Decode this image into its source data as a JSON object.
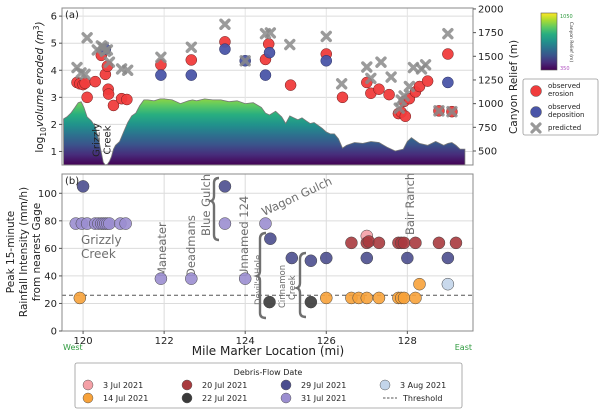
{
  "chart_data": [
    {
      "panel": "a",
      "type": "scatter",
      "panel_label": "(a)",
      "ylabel": "log10 volume eroded (m^3)",
      "ylabel_parts": {
        "prefix": "log",
        "sub": "10",
        "mid": "volume eroded ",
        "unit_open": "(m",
        "sup": "3",
        "unit_close": ")"
      },
      "ylim": [
        0.5,
        6.3
      ],
      "yticks": [
        1,
        2,
        3,
        4,
        5,
        6
      ],
      "y2label": "Canyon Relief (m)",
      "y2lim": [
        352,
        2010
      ],
      "y2ticks": [
        500,
        750,
        1000,
        1250,
        1500,
        1750,
        2000
      ],
      "xlim": [
        119.48,
        129.62
      ],
      "grid": true,
      "annotation": {
        "text_line1": "Grizzly",
        "text_line2": "Creek",
        "x": 120.55
      },
      "colorbar": {
        "label": "Canyon Relief (m)",
        "min_label": "350",
        "max_label": "1050",
        "min": 350,
        "max": 1050,
        "colormap": "viridis"
      },
      "legend": {
        "position": "right",
        "entries": [
          {
            "label_line1": "observed",
            "label_line2": "erosion",
            "kind": "erosion"
          },
          {
            "label_line1": "observed",
            "label_line2": "deposition",
            "kind": "deposition"
          },
          {
            "label_line1": "predicted",
            "label_line2": "",
            "kind": "predicted"
          }
        ]
      },
      "relief_profile": {
        "x": [
          119.52,
          119.6,
          119.7,
          119.8,
          119.88,
          119.95,
          120.02,
          120.1,
          120.2,
          120.3,
          120.4,
          120.5,
          120.55,
          120.6,
          120.65,
          120.7,
          120.75,
          120.8,
          120.9,
          121.0,
          121.1,
          121.2,
          121.3,
          121.4,
          121.5,
          121.6,
          121.75,
          121.9,
          122.0,
          122.2,
          122.4,
          122.6,
          122.7,
          122.8,
          123.0,
          123.2,
          123.4,
          123.5,
          123.6,
          123.8,
          124.0,
          124.2,
          124.4,
          124.5,
          124.6,
          124.75,
          124.9,
          125.0,
          125.1,
          125.2,
          125.3,
          125.4,
          125.5,
          125.6,
          125.7,
          125.8,
          125.9,
          126.0,
          126.1,
          126.2,
          126.3,
          126.4,
          126.5,
          126.7,
          126.9,
          127.1,
          127.3,
          127.5,
          127.7,
          127.9,
          128.0,
          128.1,
          128.3,
          128.5,
          128.7,
          128.9,
          129.0,
          129.1,
          129.2,
          129.3,
          129.42
        ],
        "relief": [
          840,
          860,
          900,
          960,
          1010,
          1020,
          960,
          860,
          820,
          760,
          590,
          380,
          352,
          360,
          390,
          440,
          520,
          560,
          600,
          700,
          800,
          870,
          900,
          980,
          1040,
          1040,
          1030,
          1050,
          1050,
          1040,
          1000,
          1030,
          1040,
          1030,
          1050,
          1040,
          1040,
          1030,
          1020,
          1030,
          1000,
          1010,
          960,
          900,
          880,
          920,
          860,
          790,
          870,
          850,
          830,
          850,
          820,
          790,
          800,
          770,
          740,
          700,
          680,
          680,
          630,
          530,
          560,
          590,
          580,
          600,
          590,
          540,
          500,
          520,
          600,
          640,
          580,
          560,
          600,
          560,
          580,
          590,
          560,
          520,
          520
        ]
      },
      "observed_erosion": [
        {
          "x": 119.85,
          "y": 3.55
        },
        {
          "x": 119.92,
          "y": 3.5
        },
        {
          "x": 120.0,
          "y": 3.47
        },
        {
          "x": 120.05,
          "y": 3.52
        },
        {
          "x": 120.1,
          "y": 3.0
        },
        {
          "x": 120.3,
          "y": 3.58
        },
        {
          "x": 120.45,
          "y": 4.55
        },
        {
          "x": 120.55,
          "y": 3.85
        },
        {
          "x": 120.6,
          "y": 4.15
        },
        {
          "x": 120.62,
          "y": 3.3
        },
        {
          "x": 120.63,
          "y": 3.12
        },
        {
          "x": 120.75,
          "y": 2.7
        },
        {
          "x": 120.95,
          "y": 2.95
        },
        {
          "x": 121.08,
          "y": 2.92
        },
        {
          "x": 121.92,
          "y": 4.2
        },
        {
          "x": 122.67,
          "y": 4.38
        },
        {
          "x": 123.5,
          "y": 5.05
        },
        {
          "x": 124.5,
          "y": 4.4
        },
        {
          "x": 124.58,
          "y": 4.97
        },
        {
          "x": 125.12,
          "y": 3.45
        },
        {
          "x": 126.0,
          "y": 4.6
        },
        {
          "x": 126.4,
          "y": 3.0
        },
        {
          "x": 127.0,
          "y": 3.55
        },
        {
          "x": 127.1,
          "y": 3.15
        },
        {
          "x": 127.3,
          "y": 3.3
        },
        {
          "x": 127.55,
          "y": 3.1
        },
        {
          "x": 127.78,
          "y": 2.4
        },
        {
          "x": 127.85,
          "y": 2.45
        },
        {
          "x": 127.95,
          "y": 2.3
        },
        {
          "x": 127.92,
          "y": 2.85
        },
        {
          "x": 128.05,
          "y": 2.95
        },
        {
          "x": 128.2,
          "y": 3.2
        },
        {
          "x": 128.3,
          "y": 3.4
        },
        {
          "x": 128.5,
          "y": 3.6
        },
        {
          "x": 128.78,
          "y": 2.5
        },
        {
          "x": 129.1,
          "y": 2.47
        },
        {
          "x": 129.0,
          "y": 4.6
        }
      ],
      "observed_deposition": [
        {
          "x": 120.55,
          "y": 4.78
        },
        {
          "x": 121.92,
          "y": 3.82
        },
        {
          "x": 122.67,
          "y": 3.82
        },
        {
          "x": 123.5,
          "y": 4.78
        },
        {
          "x": 124.0,
          "y": 4.35
        },
        {
          "x": 124.5,
          "y": 3.82
        },
        {
          "x": 124.6,
          "y": 4.65
        },
        {
          "x": 126.0,
          "y": 4.35
        },
        {
          "x": 129.0,
          "y": 3.55
        }
      ],
      "predicted": [
        {
          "x": 119.85,
          "y": 4.1
        },
        {
          "x": 119.95,
          "y": 3.9
        },
        {
          "x": 120.05,
          "y": 3.85
        },
        {
          "x": 120.1,
          "y": 5.2
        },
        {
          "x": 120.35,
          "y": 4.75
        },
        {
          "x": 120.45,
          "y": 4.9
        },
        {
          "x": 120.5,
          "y": 4.85
        },
        {
          "x": 120.55,
          "y": 4.7
        },
        {
          "x": 120.6,
          "y": 4.75
        },
        {
          "x": 120.65,
          "y": 4.3
        },
        {
          "x": 120.95,
          "y": 4.05
        },
        {
          "x": 121.1,
          "y": 4.0
        },
        {
          "x": 121.92,
          "y": 4.48
        },
        {
          "x": 122.67,
          "y": 4.85
        },
        {
          "x": 123.5,
          "y": 5.7
        },
        {
          "x": 124.0,
          "y": 4.35
        },
        {
          "x": 124.5,
          "y": 5.35
        },
        {
          "x": 124.62,
          "y": 5.38
        },
        {
          "x": 125.1,
          "y": 4.95
        },
        {
          "x": 126.0,
          "y": 5.25
        },
        {
          "x": 126.38,
          "y": 3.5
        },
        {
          "x": 127.0,
          "y": 4.12
        },
        {
          "x": 127.1,
          "y": 3.7
        },
        {
          "x": 127.35,
          "y": 4.3
        },
        {
          "x": 127.6,
          "y": 3.75
        },
        {
          "x": 127.8,
          "y": 2.6
        },
        {
          "x": 127.85,
          "y": 2.9
        },
        {
          "x": 127.92,
          "y": 3.05
        },
        {
          "x": 128.05,
          "y": 3.4
        },
        {
          "x": 128.15,
          "y": 4.1
        },
        {
          "x": 128.35,
          "y": 4.05
        },
        {
          "x": 128.45,
          "y": 4.2
        },
        {
          "x": 128.78,
          "y": 2.5
        },
        {
          "x": 129.1,
          "y": 2.47
        },
        {
          "x": 129.0,
          "y": 5.35
        }
      ]
    },
    {
      "panel": "b",
      "type": "scatter",
      "panel_label": "(b)",
      "ylabel_lines": [
        "Peak 15-minute",
        "Rainfall Intensity (mm/h)",
        "from nearest Gage"
      ],
      "ylim": [
        0,
        114
      ],
      "yticks": [
        0,
        20,
        40,
        60,
        80,
        100
      ],
      "xlabel": "Mile Marker Location (mi)",
      "xlim": [
        119.48,
        129.62
      ],
      "xticks": [
        120,
        122,
        124,
        126,
        128
      ],
      "direction_labels": {
        "west": "West",
        "east": "East",
        "color": "#2e9a3e"
      },
      "threshold": 26,
      "grid": true,
      "series": [
        {
          "name": "3 Jul 2021",
          "color": "#f4a0a6",
          "points": [
            {
              "x": 127.0,
              "y": 69
            }
          ]
        },
        {
          "name": "14 Jul 2021",
          "color": "#f7a23a",
          "points": [
            {
              "x": 119.92,
              "y": 24
            },
            {
              "x": 126.0,
              "y": 24
            },
            {
              "x": 126.62,
              "y": 24
            },
            {
              "x": 126.8,
              "y": 24
            },
            {
              "x": 127.0,
              "y": 24
            },
            {
              "x": 127.3,
              "y": 24
            },
            {
              "x": 127.78,
              "y": 24
            },
            {
              "x": 127.85,
              "y": 24
            },
            {
              "x": 127.92,
              "y": 24
            },
            {
              "x": 128.2,
              "y": 24
            },
            {
              "x": 128.3,
              "y": 34
            }
          ]
        },
        {
          "name": "20 Jul 2021",
          "color": "#a83a3e",
          "points": [
            {
              "x": 126.62,
              "y": 64
            },
            {
              "x": 127.0,
              "y": 64
            },
            {
              "x": 127.05,
              "y": 65
            },
            {
              "x": 127.3,
              "y": 64
            },
            {
              "x": 127.78,
              "y": 64
            },
            {
              "x": 127.85,
              "y": 64
            },
            {
              "x": 127.92,
              "y": 64
            },
            {
              "x": 128.2,
              "y": 64
            },
            {
              "x": 128.78,
              "y": 64
            },
            {
              "x": 129.2,
              "y": 64
            }
          ]
        },
        {
          "name": "22 Jul 2021",
          "color": "#3a3a3a",
          "points": [
            {
              "x": 124.6,
              "y": 21
            },
            {
              "x": 125.62,
              "y": 21
            }
          ]
        },
        {
          "name": "29 Jul 2021",
          "color": "#4b4e8e",
          "points": [
            {
              "x": 120.0,
              "y": 105
            },
            {
              "x": 123.5,
              "y": 105
            },
            {
              "x": 124.62,
              "y": 67
            },
            {
              "x": 125.15,
              "y": 53
            },
            {
              "x": 125.62,
              "y": 51
            },
            {
              "x": 126.0,
              "y": 53
            },
            {
              "x": 127.0,
              "y": 53
            },
            {
              "x": 128.0,
              "y": 53
            },
            {
              "x": 129.0,
              "y": 53
            }
          ]
        },
        {
          "name": "31 Jul 2021",
          "color": "#9b8ed0",
          "points": [
            {
              "x": 119.82,
              "y": 78
            },
            {
              "x": 119.97,
              "y": 78
            },
            {
              "x": 120.1,
              "y": 78
            },
            {
              "x": 120.3,
              "y": 78
            },
            {
              "x": 120.38,
              "y": 78
            },
            {
              "x": 120.45,
              "y": 78
            },
            {
              "x": 120.5,
              "y": 78
            },
            {
              "x": 120.55,
              "y": 78
            },
            {
              "x": 120.6,
              "y": 78
            },
            {
              "x": 120.65,
              "y": 78
            },
            {
              "x": 120.92,
              "y": 78
            },
            {
              "x": 121.05,
              "y": 78
            },
            {
              "x": 121.92,
              "y": 38
            },
            {
              "x": 122.67,
              "y": 38
            },
            {
              "x": 123.5,
              "y": 78
            },
            {
              "x": 124.0,
              "y": 38
            },
            {
              "x": 124.5,
              "y": 78
            }
          ]
        },
        {
          "name": "3 Aug 2021",
          "color": "#c3d5ea",
          "points": [
            {
              "x": 129.0,
              "y": 34
            }
          ]
        }
      ],
      "annotations": [
        {
          "id": "grizzly-creek",
          "line1": "Grizzly",
          "line2": "Creek"
        },
        {
          "id": "maneater",
          "text": "Maneater"
        },
        {
          "id": "deadmans",
          "text": "Deadmans"
        },
        {
          "id": "blue-gulch",
          "text": "Blue Gulch"
        },
        {
          "id": "unnamed-124",
          "text": "Unnamed 124"
        },
        {
          "id": "wagon-gulch",
          "text": "Wagon Gulch"
        },
        {
          "id": "devils-hole",
          "text": "Devil's Hole"
        },
        {
          "id": "cinnamon-creek",
          "line1": "Cinnamon",
          "line2": "Creek"
        },
        {
          "id": "bair-ranch",
          "text": "Bair Ranch"
        }
      ],
      "legend": {
        "title": "Debris-Flow Date",
        "position": "bottom",
        "threshold_label": "Threshold"
      }
    }
  ]
}
